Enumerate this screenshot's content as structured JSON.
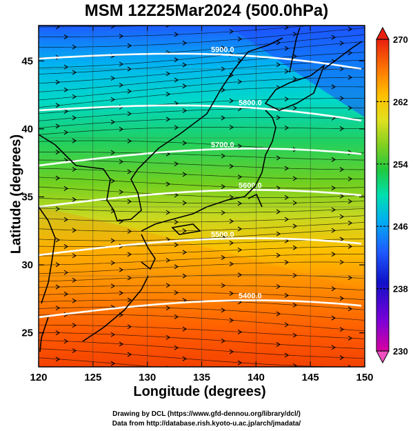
{
  "title": "MSM 12Z25Mar2024 (500.0hPa)",
  "xlabel": "Longitude (degrees)",
  "ylabel": "Latitude  (degrees)",
  "credit_line1": "Drawing by DCL (https://www.gfd-dennou.org/library/dcl/)",
  "credit_line2": "Data from http://database.rish.kyoto-u.ac.jp/arch/jmadata/",
  "map": {
    "lon_range": [
      120,
      150
    ],
    "lat_range": [
      22.5,
      47.6
    ],
    "lon_ticks": [
      "120",
      "125",
      "130",
      "135",
      "140",
      "145",
      "150"
    ],
    "lat_ticks": [
      "25",
      "30",
      "35",
      "40",
      "45"
    ],
    "contour_label": "5500.0",
    "contour_labels_shown": [
      "5400.0",
      "5500.0",
      "5600.0",
      "5700.0",
      "5800.0",
      "5900.0"
    ]
  },
  "colorbar": {
    "variable": "temperature",
    "range": [
      230,
      270
    ],
    "tick_labels": [
      "270",
      "262",
      "254",
      "246",
      "238",
      "230"
    ],
    "colors": [
      "#d80090",
      "#7a00d8",
      "#2020e0",
      "#2060ff",
      "#00b0f0",
      "#00e0d0",
      "#20d060",
      "#60d020",
      "#a0d020",
      "#e0e020",
      "#ffc000",
      "#ff8a00",
      "#ff5a00",
      "#e02010"
    ]
  }
}
